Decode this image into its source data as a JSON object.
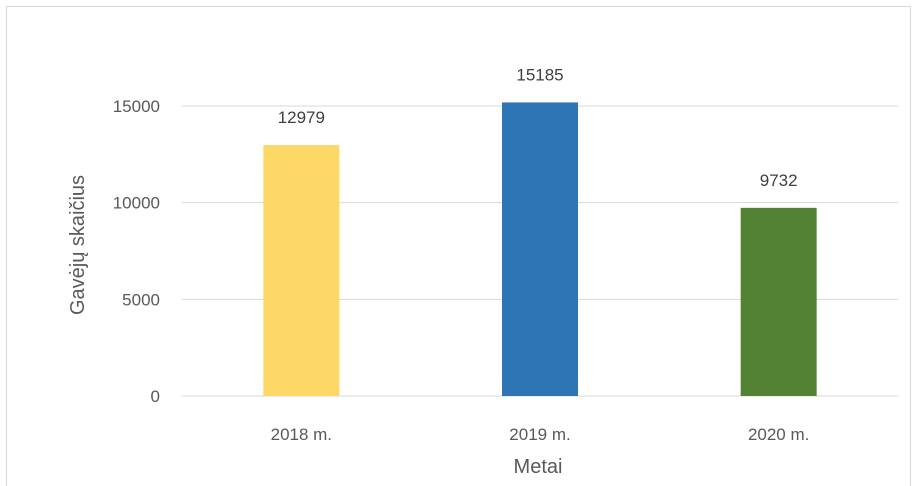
{
  "chart_data": {
    "type": "bar",
    "categories": [
      "2018 m.",
      "2019 m.",
      "2020 m."
    ],
    "values": [
      12979,
      15185,
      9732
    ],
    "data_labels": [
      "12979",
      "15185",
      "9732"
    ],
    "colors": [
      "#FDD866",
      "#2E75B6",
      "#548235"
    ],
    "xlabel": "Metai",
    "ylabel": "Gavėjų skaičius",
    "ylim": [
      0,
      15000
    ],
    "yticks": [
      "0",
      "5000",
      "10000",
      "15000"
    ],
    "grid": true,
    "legend": "none"
  }
}
